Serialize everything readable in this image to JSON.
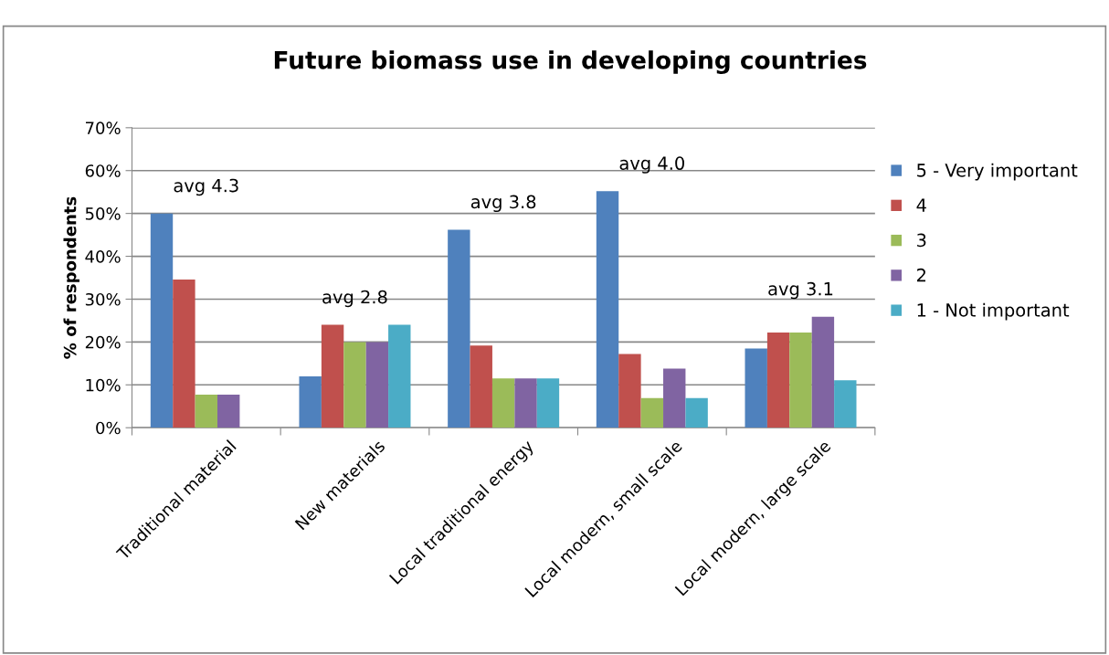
{
  "chart_data": {
    "type": "bar",
    "title": "Future biomass use in developing countries",
    "ylabel": "% of respondents",
    "categories": [
      "Traditional material",
      "New materials",
      "Local traditional energy",
      "Local modern, small scale",
      "Local modern, large scale"
    ],
    "series": [
      {
        "name": "5 - Very important",
        "color": "#4f81bd",
        "values": [
          50,
          12,
          46.2,
          55.2,
          18.5
        ]
      },
      {
        "name": "4",
        "color": "#c0504d",
        "values": [
          34.6,
          24,
          19.2,
          17.2,
          22.2
        ]
      },
      {
        "name": "3",
        "color": "#9bbb59",
        "values": [
          7.7,
          20,
          11.5,
          6.9,
          22.2
        ]
      },
      {
        "name": "2",
        "color": "#8064a2",
        "values": [
          7.7,
          20,
          11.5,
          13.8,
          25.9
        ]
      },
      {
        "name": "1 - Not important",
        "color": "#4bacc6",
        "values": [
          0,
          24,
          11.5,
          6.9,
          11.1
        ]
      }
    ],
    "ylim": [
      0,
      70
    ],
    "yticks": [
      {
        "value": 0,
        "label": "0%"
      },
      {
        "value": 10,
        "label": "10%"
      },
      {
        "value": 20,
        "label": "20%"
      },
      {
        "value": 30,
        "label": "30%"
      },
      {
        "value": 40,
        "label": "40%"
      },
      {
        "value": 50,
        "label": "50%"
      },
      {
        "value": 60,
        "label": "60%"
      },
      {
        "value": 70,
        "label": "70%"
      }
    ],
    "grid": "y",
    "legend": "right",
    "annotations": [
      "avg 4.3",
      "avg 2.8",
      "avg 3.8",
      "avg 4.0",
      "avg 3.1"
    ]
  }
}
